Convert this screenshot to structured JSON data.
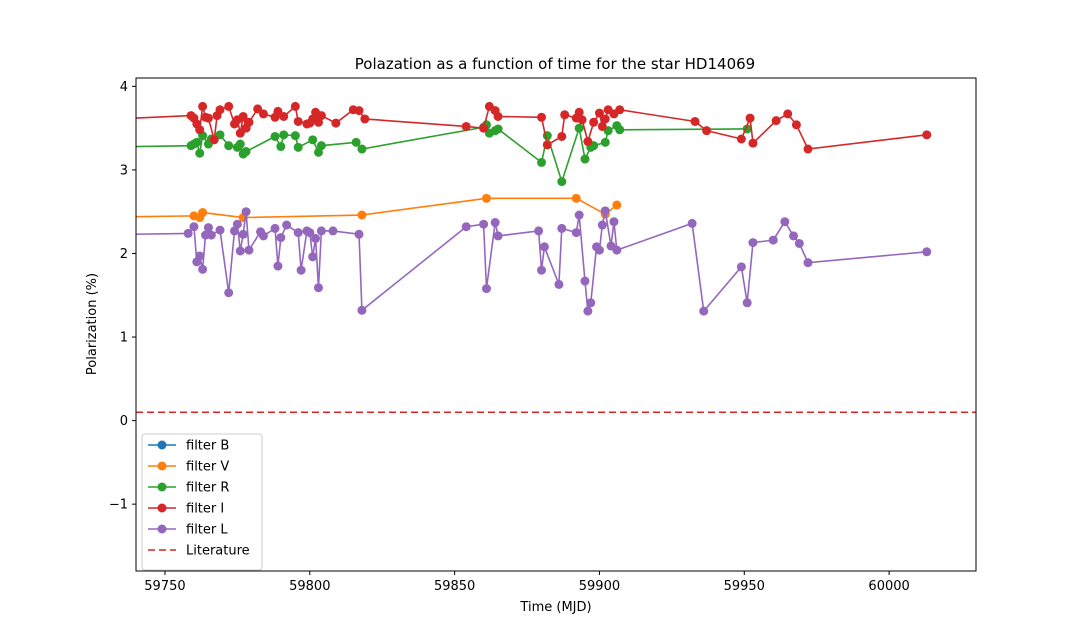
{
  "chart_data": {
    "type": "line",
    "title": "Polazation as a function of time for the star HD14069",
    "xlabel": "Time (MJD)",
    "ylabel": "Polarization (%)",
    "xlim": [
      59740,
      60030
    ],
    "ylim": [
      -1.8,
      4.1
    ],
    "xticks": [
      59750,
      59800,
      59850,
      59900,
      59950,
      60000
    ],
    "yticks": [
      -1,
      0,
      1,
      2,
      3,
      4
    ],
    "grid": false,
    "legend_position": "lower-left",
    "series": [
      {
        "name": "filter B",
        "color": "#1f77b4",
        "marker": "circle",
        "linestyle": "solid",
        "x": [],
        "y": []
      },
      {
        "name": "filter V",
        "color": "#ff7f0e",
        "marker": "circle",
        "linestyle": "solid",
        "x": [
          59740,
          59760,
          59762,
          59763,
          59777,
          59818,
          59861,
          59892,
          59902,
          59906
        ],
        "y": [
          2.44,
          2.45,
          2.43,
          2.49,
          2.43,
          2.46,
          2.66,
          2.66,
          2.47,
          2.58
        ]
      },
      {
        "name": "filter R",
        "color": "#2ca02c",
        "marker": "circle",
        "linestyle": "solid",
        "x": [
          59740,
          59759,
          59760,
          59761,
          59762,
          59763,
          59765,
          59766,
          59769,
          59772,
          59775,
          59776,
          59777,
          59778,
          59788,
          59790,
          59791,
          59795,
          59796,
          59801,
          59803,
          59804,
          59816,
          59818,
          59860,
          59861,
          59862,
          59864,
          59865,
          59880,
          59882,
          59887,
          59893,
          59895,
          59897,
          59898,
          59902,
          59903,
          59906,
          59907,
          59951
        ],
        "y": [
          3.28,
          3.29,
          3.31,
          3.33,
          3.2,
          3.41,
          3.31,
          3.37,
          3.42,
          3.29,
          3.27,
          3.31,
          3.19,
          3.22,
          3.4,
          3.28,
          3.42,
          3.41,
          3.27,
          3.36,
          3.21,
          3.29,
          3.33,
          3.25,
          3.51,
          3.54,
          3.44,
          3.47,
          3.49,
          3.09,
          3.41,
          2.86,
          3.5,
          3.13,
          3.27,
          3.29,
          3.33,
          3.47,
          3.53,
          3.48,
          3.49
        ]
      },
      {
        "name": "filter I",
        "color": "#d62728",
        "marker": "circle",
        "linestyle": "solid",
        "x": [
          59740,
          59759,
          59760,
          59761,
          59762,
          59763,
          59764,
          59765,
          59767,
          59768,
          59769,
          59772,
          59774,
          59775,
          59776,
          59777,
          59778,
          59779,
          59782,
          59784,
          59788,
          59789,
          59791,
          59795,
          59796,
          59799,
          59800,
          59801,
          59802,
          59803,
          59804,
          59809,
          59815,
          59817,
          59819,
          59854,
          59860,
          59862,
          59864,
          59865,
          59880,
          59882,
          59887,
          59888,
          59892,
          59893,
          59894,
          59896,
          59898,
          59900,
          59901,
          59902,
          59903,
          59905,
          59907,
          59933,
          59937,
          59949,
          59952,
          59953,
          59961,
          59965,
          59968,
          59972,
          60013
        ],
        "y": [
          3.62,
          3.65,
          3.62,
          3.55,
          3.48,
          3.76,
          3.63,
          3.62,
          3.36,
          3.65,
          3.72,
          3.76,
          3.55,
          3.6,
          3.44,
          3.64,
          3.5,
          3.57,
          3.73,
          3.67,
          3.63,
          3.7,
          3.64,
          3.76,
          3.58,
          3.55,
          3.56,
          3.61,
          3.69,
          3.57,
          3.65,
          3.56,
          3.72,
          3.71,
          3.61,
          3.52,
          3.5,
          3.76,
          3.71,
          3.64,
          3.63,
          3.3,
          3.4,
          3.66,
          3.62,
          3.69,
          3.6,
          3.34,
          3.57,
          3.68,
          3.52,
          3.61,
          3.72,
          3.67,
          3.72,
          3.58,
          3.47,
          3.37,
          3.62,
          3.32,
          3.59,
          3.67,
          3.54,
          3.25,
          3.42
        ]
      },
      {
        "name": "filter L",
        "color": "#9467bd",
        "marker": "circle",
        "linestyle": "solid",
        "x": [
          59740,
          59758,
          59760,
          59761,
          59762,
          59763,
          59764,
          59765,
          59766,
          59769,
          59772,
          59774,
          59775,
          59776,
          59777,
          59778,
          59779,
          59783,
          59784,
          59788,
          59789,
          59790,
          59792,
          59796,
          59797,
          59799,
          59800,
          59801,
          59802,
          59803,
          59804,
          59808,
          59817,
          59818,
          59854,
          59860,
          59861,
          59864,
          59865,
          59879,
          59880,
          59881,
          59886,
          59887,
          59892,
          59893,
          59895,
          59896,
          59897,
          59899,
          59900,
          59901,
          59902,
          59904,
          59905,
          59906,
          59932,
          59936,
          59949,
          59951,
          59953,
          59960,
          59964,
          59967,
          59969,
          59972,
          60013
        ],
        "y": [
          2.23,
          2.24,
          2.32,
          1.9,
          1.97,
          1.81,
          2.22,
          2.31,
          2.22,
          2.28,
          1.53,
          2.27,
          2.35,
          2.03,
          2.23,
          2.5,
          2.04,
          2.26,
          2.21,
          2.3,
          1.85,
          2.19,
          2.34,
          2.25,
          1.8,
          2.27,
          2.25,
          1.96,
          2.18,
          1.59,
          2.27,
          2.27,
          2.23,
          1.32,
          2.32,
          2.35,
          1.58,
          2.37,
          2.21,
          2.27,
          1.8,
          2.08,
          1.63,
          2.3,
          2.25,
          2.46,
          1.67,
          1.31,
          1.41,
          2.08,
          2.04,
          2.34,
          2.51,
          2.09,
          2.38,
          2.04,
          2.36,
          1.31,
          1.84,
          1.41,
          2.13,
          2.16,
          2.38,
          2.21,
          2.12,
          1.89,
          2.02
        ]
      },
      {
        "name": "Literature",
        "color": "#d62728",
        "marker": "none",
        "linestyle": "dashed",
        "x": [
          59740,
          60030
        ],
        "y": [
          0.1,
          0.1
        ]
      }
    ]
  }
}
